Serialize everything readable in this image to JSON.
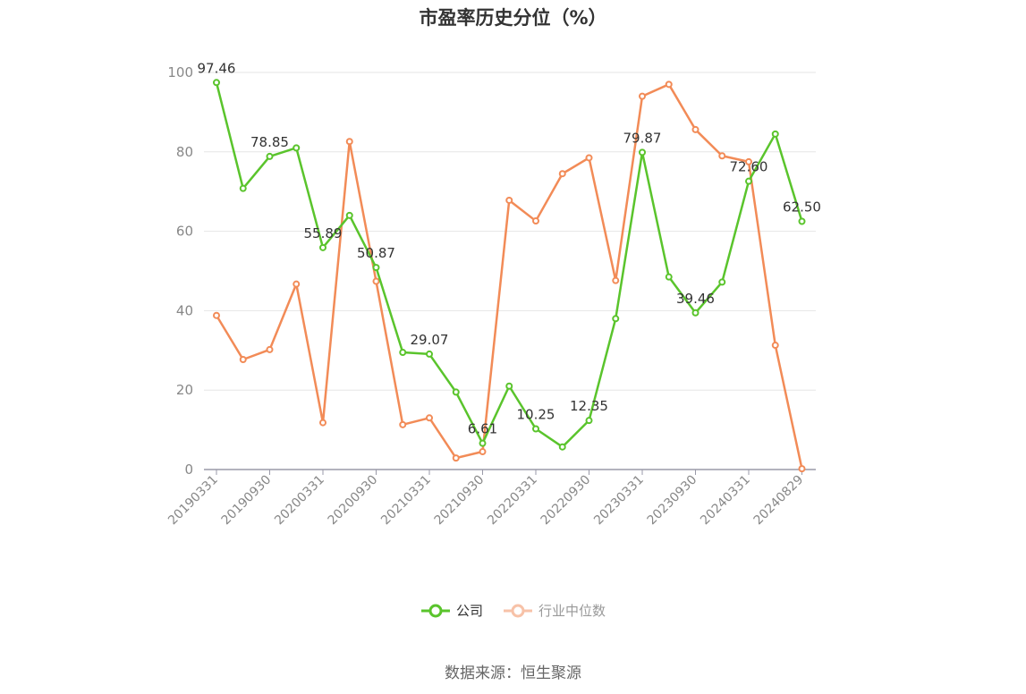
{
  "chart_data": {
    "type": "line",
    "title": "市盈率历史分位（%）",
    "ylim": [
      0,
      100
    ],
    "yticks": [
      0,
      20,
      40,
      60,
      80,
      100
    ],
    "grid": true,
    "legend_position": "bottom-center",
    "x": [
      "20190331",
      "20190630",
      "20190930",
      "20191231",
      "20200331",
      "20200630",
      "20200930",
      "20201231",
      "20210331",
      "20210630",
      "20210930",
      "20211231",
      "20220331",
      "20220630",
      "20220930",
      "20221231",
      "20230331",
      "20230630",
      "20230930",
      "20231231",
      "20240331",
      "20240630",
      "20240829"
    ],
    "xtick_labels": [
      "20190331",
      "20190930",
      "20200331",
      "20200930",
      "20210331",
      "20210930",
      "20220331",
      "20220930",
      "20230331",
      "20230930",
      "20240331",
      "20240829"
    ],
    "series": [
      {
        "name": "公司",
        "color": "#5ac42c",
        "values": [
          97.46,
          70.8,
          78.85,
          81.0,
          55.89,
          64.0,
          50.87,
          29.5,
          29.07,
          19.5,
          6.61,
          21.0,
          10.25,
          5.7,
          12.35,
          38.0,
          79.87,
          48.5,
          39.46,
          47.2,
          72.6,
          84.5,
          62.5
        ],
        "data_labels": [
          "97.46",
          "",
          "78.85",
          "",
          "55.89",
          "",
          "50.87",
          "",
          "29.07",
          "",
          "6.61",
          "",
          "10.25",
          "",
          "12.35",
          "",
          "79.87",
          "",
          "39.46",
          "",
          "72.60",
          "",
          "62.50"
        ]
      },
      {
        "name": "行业中位数",
        "color": "#f28b57",
        "values": [
          38.8,
          27.7,
          30.2,
          46.7,
          11.8,
          82.6,
          47.4,
          11.3,
          13.0,
          2.9,
          4.5,
          67.8,
          62.6,
          74.5,
          78.5,
          47.6,
          94.0,
          97.0,
          85.6,
          79.0,
          77.5,
          31.3,
          0.2
        ]
      }
    ]
  },
  "legend": {
    "company_icon": "circle-line-marker",
    "industry_icon": "circle-line-marker"
  },
  "footer": {
    "source": "数据来源：恒生聚源"
  }
}
